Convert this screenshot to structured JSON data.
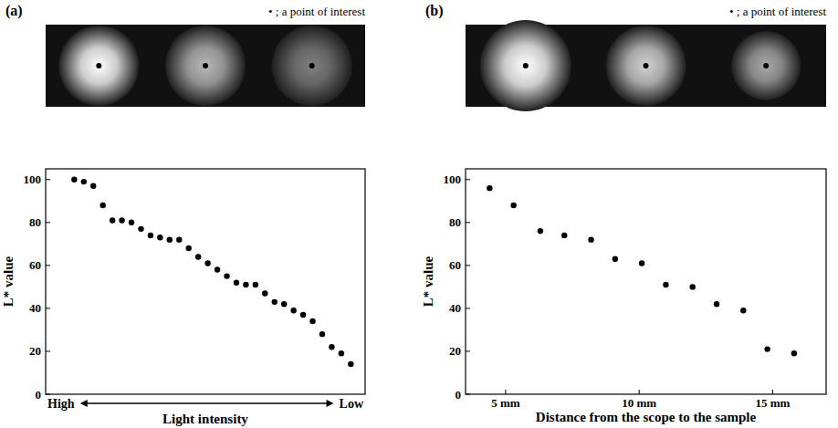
{
  "chart_data": [
    {
      "type": "scatter",
      "panel_label": "(a)",
      "note": "• ; a point of interest",
      "x_label": "Light intensity",
      "annotations": [
        "High",
        "Low"
      ],
      "y_label": "L* value",
      "x": [
        1,
        2,
        3,
        4,
        5,
        6,
        7,
        8,
        9,
        10,
        11,
        12,
        13,
        14,
        15,
        16,
        17,
        18,
        19,
        20,
        21,
        22,
        23,
        24,
        25,
        26,
        27,
        28,
        29,
        30
      ],
      "values": [
        100,
        99,
        97,
        88,
        81,
        81,
        80,
        77,
        74,
        73,
        72,
        72,
        68,
        64,
        61,
        58,
        55,
        52,
        51,
        51,
        47,
        43,
        42,
        39,
        37,
        34,
        28,
        22,
        19,
        14
      ],
      "xlim": [
        -2,
        31.5
      ],
      "ylim": [
        0,
        105
      ],
      "yticks": [
        0,
        20,
        40,
        60,
        80,
        100
      ],
      "tick_labels": "y",
      "color": "#000000",
      "marker": "circle"
    },
    {
      "type": "scatter",
      "panel_label": "(b)",
      "note": "• ; a point of interest",
      "x_label": "Distance from the scope to the sample",
      "y_label": "L* value",
      "x": [
        4.4,
        5.3,
        6.3,
        7.2,
        8.2,
        9.1,
        10.1,
        11.0,
        12.0,
        12.9,
        13.9,
        14.8,
        15.8
      ],
      "values": [
        96,
        88,
        76,
        74,
        72,
        63,
        61,
        51,
        50,
        42,
        39,
        21,
        19
      ],
      "xlim": [
        3.5,
        17
      ],
      "ylim": [
        0,
        105
      ],
      "xticks": [
        {
          "value": 5,
          "label": "5 mm"
        },
        {
          "value": 10,
          "label": "10 mm"
        },
        {
          "value": 15,
          "label": "15 mm"
        }
      ],
      "yticks": [
        0,
        20,
        40,
        60,
        80,
        100
      ],
      "color": "#000000",
      "marker": "circle"
    }
  ]
}
